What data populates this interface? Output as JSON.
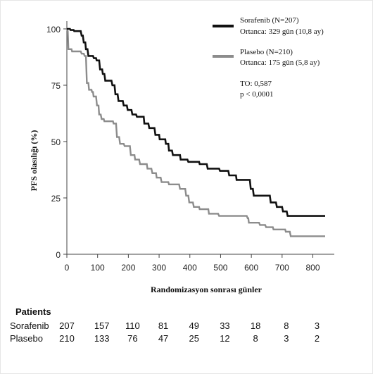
{
  "chart_data": {
    "type": "line",
    "step": true,
    "xlabel": "Randomizasyon sonrası günler",
    "ylabel": "PFS olasılığı (%)",
    "xlim": [
      0,
      840
    ],
    "ylim": [
      0,
      100
    ],
    "xticks": [
      0,
      100,
      200,
      300,
      400,
      500,
      600,
      700,
      800
    ],
    "yticks": [
      0,
      25,
      50,
      75,
      100
    ],
    "legend_position": "top-right",
    "series": [
      {
        "name": "Sorafenib (N=207)",
        "subtitle": "Ortanca: 329 gün (10,8 ay)",
        "color": "#111111",
        "points": [
          [
            0,
            100
          ],
          [
            10,
            100
          ],
          [
            12,
            99.5
          ],
          [
            22,
            99.5
          ],
          [
            24,
            99
          ],
          [
            45,
            99
          ],
          [
            48,
            97
          ],
          [
            52,
            97
          ],
          [
            55,
            94
          ],
          [
            60,
            94
          ],
          [
            62,
            91
          ],
          [
            67,
            91
          ],
          [
            70,
            88
          ],
          [
            85,
            88
          ],
          [
            88,
            87
          ],
          [
            95,
            87
          ],
          [
            97,
            86
          ],
          [
            105,
            86
          ],
          [
            108,
            82
          ],
          [
            115,
            82
          ],
          [
            117,
            80
          ],
          [
            122,
            80
          ],
          [
            125,
            77
          ],
          [
            145,
            77
          ],
          [
            148,
            75
          ],
          [
            155,
            75
          ],
          [
            158,
            71
          ],
          [
            165,
            71
          ],
          [
            168,
            68
          ],
          [
            182,
            68
          ],
          [
            185,
            66
          ],
          [
            195,
            66
          ],
          [
            198,
            64
          ],
          [
            210,
            64
          ],
          [
            213,
            62
          ],
          [
            225,
            62
          ],
          [
            228,
            61
          ],
          [
            250,
            61
          ],
          [
            252,
            58
          ],
          [
            265,
            58
          ],
          [
            268,
            56
          ],
          [
            285,
            56
          ],
          [
            288,
            53
          ],
          [
            300,
            53
          ],
          [
            302,
            51
          ],
          [
            320,
            51
          ],
          [
            322,
            49
          ],
          [
            330,
            49
          ],
          [
            332,
            46
          ],
          [
            342,
            46
          ],
          [
            345,
            44
          ],
          [
            368,
            44
          ],
          [
            370,
            42
          ],
          [
            392,
            42
          ],
          [
            395,
            41
          ],
          [
            430,
            41
          ],
          [
            432,
            40
          ],
          [
            455,
            40
          ],
          [
            458,
            38
          ],
          [
            495,
            38
          ],
          [
            498,
            37
          ],
          [
            525,
            37
          ],
          [
            528,
            35
          ],
          [
            550,
            35
          ],
          [
            552,
            33
          ],
          [
            595,
            33
          ],
          [
            598,
            29
          ],
          [
            605,
            29
          ],
          [
            608,
            26
          ],
          [
            660,
            26
          ],
          [
            663,
            23
          ],
          [
            680,
            23
          ],
          [
            683,
            21
          ],
          [
            700,
            21
          ],
          [
            703,
            19
          ],
          [
            715,
            19
          ],
          [
            718,
            17
          ],
          [
            840,
            17
          ]
        ]
      },
      {
        "name": "Plasebo (N=210)",
        "subtitle": "Ortanca: 175 gün (5,8 ay)",
        "color": "#8c8c8c",
        "points": [
          [
            0,
            100
          ],
          [
            3,
            99
          ],
          [
            5,
            91
          ],
          [
            15,
            91
          ],
          [
            17,
            90
          ],
          [
            45,
            90
          ],
          [
            48,
            89
          ],
          [
            55,
            89
          ],
          [
            58,
            88
          ],
          [
            62,
            88
          ],
          [
            65,
            76
          ],
          [
            70,
            76
          ],
          [
            72,
            73
          ],
          [
            80,
            73
          ],
          [
            82,
            72
          ],
          [
            85,
            72
          ],
          [
            87,
            70
          ],
          [
            95,
            70
          ],
          [
            98,
            66
          ],
          [
            103,
            66
          ],
          [
            105,
            62
          ],
          [
            110,
            62
          ],
          [
            113,
            60
          ],
          [
            120,
            60
          ],
          [
            122,
            59
          ],
          [
            150,
            59
          ],
          [
            152,
            58
          ],
          [
            160,
            58
          ],
          [
            163,
            52
          ],
          [
            170,
            52
          ],
          [
            173,
            49
          ],
          [
            185,
            49
          ],
          [
            188,
            48
          ],
          [
            205,
            48
          ],
          [
            208,
            44
          ],
          [
            220,
            44
          ],
          [
            222,
            42
          ],
          [
            235,
            42
          ],
          [
            238,
            40
          ],
          [
            260,
            40
          ],
          [
            262,
            38
          ],
          [
            275,
            38
          ],
          [
            278,
            36
          ],
          [
            290,
            36
          ],
          [
            292,
            34
          ],
          [
            305,
            34
          ],
          [
            308,
            32
          ],
          [
            330,
            32
          ],
          [
            332,
            31
          ],
          [
            365,
            31
          ],
          [
            368,
            29
          ],
          [
            385,
            29
          ],
          [
            388,
            26
          ],
          [
            395,
            26
          ],
          [
            398,
            23
          ],
          [
            410,
            23
          ],
          [
            413,
            21
          ],
          [
            430,
            21
          ],
          [
            432,
            20
          ],
          [
            460,
            20
          ],
          [
            462,
            18
          ],
          [
            492,
            18
          ],
          [
            495,
            17
          ],
          [
            585,
            17
          ],
          [
            588,
            16
          ],
          [
            590,
            16
          ],
          [
            592,
            14
          ],
          [
            625,
            14
          ],
          [
            628,
            13
          ],
          [
            645,
            13
          ],
          [
            648,
            12
          ],
          [
            670,
            12
          ],
          [
            672,
            11
          ],
          [
            710,
            11
          ],
          [
            712,
            10
          ],
          [
            725,
            10
          ],
          [
            728,
            8
          ],
          [
            840,
            8
          ]
        ]
      }
    ],
    "annotations": [
      "TO: 0,587",
      "p < 0,0001"
    ]
  },
  "risk_table": {
    "header": "Patients",
    "times": [
      0,
      100,
      200,
      300,
      400,
      500,
      600,
      700,
      800
    ],
    "rows": [
      {
        "label": "Sorafenib",
        "values": [
          "207",
          "157",
          "110",
          "81",
          "49",
          "33",
          "18",
          "8",
          "3"
        ]
      },
      {
        "label": "Plasebo",
        "values": [
          "210",
          "133",
          "76",
          "47",
          "25",
          "12",
          "8",
          "3",
          "2"
        ]
      }
    ]
  }
}
